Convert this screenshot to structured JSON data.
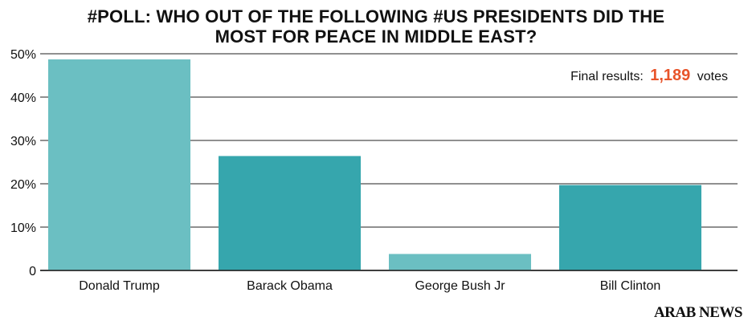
{
  "title_lines": [
    "#POLL: WHO OUT OF THE FOLLOWING #US PRESIDENTS DID THE",
    "MOST FOR PEACE IN MIDDLE EAST?"
  ],
  "results": {
    "prefix": "Final results:",
    "count": "1,189",
    "suffix": "votes"
  },
  "brand": "ARAB NEWS",
  "colors": {
    "bar_light": "#6bbfc2",
    "bar_dark": "#36a6ad",
    "grid": "#222222",
    "accent": "#e8542a"
  },
  "chart_data": {
    "type": "bar",
    "title": "#POLL: WHO OUT OF THE FOLLOWING #US PRESIDENTS DID THE MOST FOR PEACE IN MIDDLE EAST?",
    "categories": [
      "Donald Trump",
      "Barack Obama",
      "George Bush Jr",
      "Bill Clinton"
    ],
    "values": [
      48.7,
      26.4,
      3.8,
      19.7
    ],
    "bar_colors": [
      "#6bbfc2",
      "#36a6ad",
      "#6bbfc2",
      "#36a6ad"
    ],
    "ylim": [
      0,
      50
    ],
    "yticks": [
      0,
      10,
      20,
      30,
      40,
      50
    ],
    "ytick_labels": [
      "0",
      "10%",
      "20%",
      "30%",
      "40%",
      "50%"
    ],
    "xlabel": "",
    "ylabel": "",
    "grid": true,
    "legend": false
  }
}
